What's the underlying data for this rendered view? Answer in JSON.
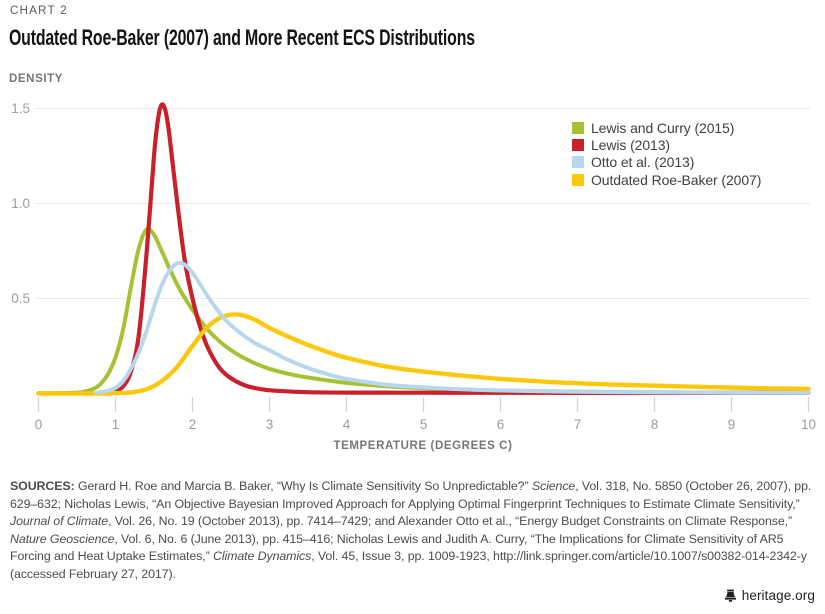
{
  "header": {
    "kicker": "CHART 2",
    "title": "Outdated Roe-Baker (2007) and More Recent ECS Distributions"
  },
  "chart_data": {
    "type": "line",
    "title": "Outdated Roe-Baker (2007) and More Recent ECS Distributions",
    "xlabel": "TEMPERATURE (DEGREES C)",
    "ylabel": "DENSITY",
    "xlim": [
      0,
      10
    ],
    "ylim": [
      0,
      1.55
    ],
    "x_ticks": [
      0,
      1,
      2,
      3,
      4,
      5,
      6,
      7,
      8,
      9,
      10
    ],
    "y_ticks": [
      0.5,
      1.0,
      1.5
    ],
    "y_tick_labels": [
      "0.5",
      "1.0",
      "1.5"
    ],
    "grid": "horizontal-only",
    "legend_position": "top-right",
    "paint_order": [
      0,
      1,
      3,
      2
    ],
    "series": [
      {
        "id": "lewis-curry-2015",
        "name": "Lewis and Curry (2015)",
        "color": "#a4c233",
        "stroke_width": 4,
        "points": [
          [
            0,
            0.002
          ],
          [
            0.3,
            0.002
          ],
          [
            0.5,
            0.005
          ],
          [
            0.6,
            0.01
          ],
          [
            0.7,
            0.022
          ],
          [
            0.8,
            0.048
          ],
          [
            0.9,
            0.1
          ],
          [
            1.0,
            0.19
          ],
          [
            1.1,
            0.34
          ],
          [
            1.2,
            0.56
          ],
          [
            1.3,
            0.76
          ],
          [
            1.4,
            0.862
          ],
          [
            1.5,
            0.835
          ],
          [
            1.6,
            0.75
          ],
          [
            1.7,
            0.66
          ],
          [
            1.8,
            0.575
          ],
          [
            1.9,
            0.503
          ],
          [
            2.0,
            0.44
          ],
          [
            2.2,
            0.335
          ],
          [
            2.4,
            0.258
          ],
          [
            2.6,
            0.202
          ],
          [
            2.8,
            0.161
          ],
          [
            3.0,
            0.13
          ],
          [
            3.25,
            0.103
          ],
          [
            3.5,
            0.084
          ],
          [
            4.0,
            0.056
          ],
          [
            4.5,
            0.039
          ],
          [
            5.0,
            0.028
          ],
          [
            5.5,
            0.021
          ],
          [
            6.0,
            0.016
          ],
          [
            7.0,
            0.01
          ],
          [
            8.0,
            0.007
          ],
          [
            9.0,
            0.005
          ],
          [
            10.0,
            0.004
          ]
        ]
      },
      {
        "id": "lewis-2013",
        "name": "Lewis (2013)",
        "color": "#c9212b",
        "stroke_width": 4.2,
        "points": [
          [
            0.8,
            0.002
          ],
          [
            0.9,
            0.005
          ],
          [
            1.0,
            0.012
          ],
          [
            1.1,
            0.038
          ],
          [
            1.2,
            0.115
          ],
          [
            1.3,
            0.3
          ],
          [
            1.4,
            0.72
          ],
          [
            1.5,
            1.25
          ],
          [
            1.55,
            1.44
          ],
          [
            1.6,
            1.52
          ],
          [
            1.65,
            1.485
          ],
          [
            1.7,
            1.36
          ],
          [
            1.8,
            1.01
          ],
          [
            1.9,
            0.7
          ],
          [
            2.0,
            0.5
          ],
          [
            2.1,
            0.35
          ],
          [
            2.2,
            0.24
          ],
          [
            2.35,
            0.135
          ],
          [
            2.5,
            0.08
          ],
          [
            2.7,
            0.04
          ],
          [
            2.9,
            0.022
          ],
          [
            3.1,
            0.014
          ],
          [
            3.5,
            0.007
          ],
          [
            4.0,
            0.005
          ],
          [
            5.0,
            0.004
          ],
          [
            6.0,
            0.0035
          ],
          [
            8.0,
            0.003
          ],
          [
            10.0,
            0.003
          ]
        ]
      },
      {
        "id": "otto-2013",
        "name": "Otto et al. (2013)",
        "color": "#b7d7ee",
        "stroke_width": 4,
        "points": [
          [
            0.75,
            0.004
          ],
          [
            0.9,
            0.014
          ],
          [
            1.0,
            0.03
          ],
          [
            1.1,
            0.065
          ],
          [
            1.2,
            0.13
          ],
          [
            1.3,
            0.215
          ],
          [
            1.4,
            0.325
          ],
          [
            1.5,
            0.455
          ],
          [
            1.6,
            0.57
          ],
          [
            1.7,
            0.645
          ],
          [
            1.8,
            0.685
          ],
          [
            1.9,
            0.678
          ],
          [
            2.0,
            0.635
          ],
          [
            2.1,
            0.575
          ],
          [
            2.2,
            0.51
          ],
          [
            2.4,
            0.4
          ],
          [
            2.6,
            0.325
          ],
          [
            2.8,
            0.268
          ],
          [
            3.0,
            0.228
          ],
          [
            3.2,
            0.185
          ],
          [
            3.5,
            0.134
          ],
          [
            3.75,
            0.102
          ],
          [
            4.0,
            0.077
          ],
          [
            4.5,
            0.047
          ],
          [
            5.0,
            0.032
          ],
          [
            5.5,
            0.022
          ],
          [
            6.0,
            0.016
          ],
          [
            7.0,
            0.009
          ],
          [
            8.0,
            0.006
          ],
          [
            9.0,
            0.004
          ],
          [
            10.0,
            0.003
          ]
        ]
      },
      {
        "id": "roe-baker-2007",
        "name": "Outdated Roe-Baker (2007)",
        "color": "#fdc70c",
        "stroke_width": 4.4,
        "points": [
          [
            0,
            0.0
          ],
          [
            0.8,
            0.0
          ],
          [
            1.0,
            0.002
          ],
          [
            1.2,
            0.006
          ],
          [
            1.4,
            0.022
          ],
          [
            1.6,
            0.065
          ],
          [
            1.8,
            0.14
          ],
          [
            2.0,
            0.25
          ],
          [
            2.2,
            0.352
          ],
          [
            2.4,
            0.405
          ],
          [
            2.6,
            0.415
          ],
          [
            2.8,
            0.39
          ],
          [
            3.0,
            0.345
          ],
          [
            3.25,
            0.298
          ],
          [
            3.5,
            0.256
          ],
          [
            3.75,
            0.219
          ],
          [
            4.0,
            0.188
          ],
          [
            4.5,
            0.143
          ],
          [
            5.0,
            0.115
          ],
          [
            5.5,
            0.094
          ],
          [
            6.0,
            0.077
          ],
          [
            6.5,
            0.064
          ],
          [
            7.0,
            0.054
          ],
          [
            7.5,
            0.047
          ],
          [
            8.0,
            0.041
          ],
          [
            8.5,
            0.036
          ],
          [
            9.0,
            0.031
          ],
          [
            9.5,
            0.027
          ],
          [
            10.0,
            0.024
          ]
        ]
      }
    ]
  },
  "sources": {
    "segments": [
      {
        "t": "SOURCES: ",
        "b": true
      },
      {
        "t": "Gerard H. Roe and Marcia B. Baker, “Why Is Climate Sensitivity So Unpredictable?” "
      },
      {
        "t": "Science",
        "i": true
      },
      {
        "t": ", Vol. 318, No. 5850 (October 26, 2007), pp. 629–632; Nicholas Lewis, “An Objective Bayesian Improved Approach for Applying Optimal Fingerprint Techniques to Estimate Climate Sensitivity,” "
      },
      {
        "t": "Journal of Climate",
        "i": true
      },
      {
        "t": ", Vol. 26, No. 19 (October 2013), pp. 7414–7429; and Alexander Otto et al., “Energy Budget Constraints on Climate Response,” "
      },
      {
        "t": "Nature Geoscience",
        "i": true
      },
      {
        "t": ", Vol. 6, No. 6 (June 2013), pp. 415–416; Nicholas Lewis and Judith A. Curry, “The Implications for Climate Sensitivity of AR5 Forcing and Heat Uptake Estimates,” "
      },
      {
        "t": "Climate Dynamics",
        "i": true
      },
      {
        "t": ", Vol. 45, Issue 3, pp. 1009-1923, http://link.springer.com/article/10.1007/s00382-014-2342-y (accessed February 27, 2017)."
      }
    ]
  },
  "footer": {
    "brand": "heritage.org"
  },
  "colors": {
    "title": "#141414",
    "kicker": "#58595b",
    "axis_title": "#76777a",
    "tick_label": "#9b9c9e",
    "gridline": "#e9e9e9",
    "tick_mark": "#d2d2d2",
    "legend_text": "#414042",
    "sources_text": "#4b4c4e",
    "brand": "#231f20"
  }
}
